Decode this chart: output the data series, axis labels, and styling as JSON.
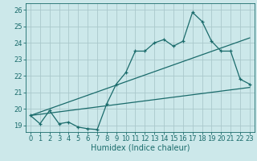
{
  "xlabel": "Humidex (Indice chaleur)",
  "ylabel": "",
  "bg_color": "#cce8ea",
  "grid_color": "#aac8cc",
  "line_color": "#1a6b6b",
  "xlim": [
    -0.5,
    23.5
  ],
  "ylim": [
    18.6,
    26.4
  ],
  "xticks": [
    0,
    1,
    2,
    3,
    4,
    5,
    6,
    7,
    8,
    9,
    10,
    11,
    12,
    13,
    14,
    15,
    16,
    17,
    18,
    19,
    20,
    21,
    22,
    23
  ],
  "yticks": [
    19,
    20,
    21,
    22,
    23,
    24,
    25,
    26
  ],
  "line1_x": [
    0,
    1,
    2,
    3,
    4,
    5,
    6,
    7,
    8,
    9,
    10,
    11,
    12,
    13,
    14,
    15,
    16,
    17,
    18,
    19,
    20,
    21,
    22,
    23
  ],
  "line1_y": [
    19.6,
    19.1,
    19.9,
    19.1,
    19.2,
    18.9,
    18.8,
    18.75,
    20.3,
    21.5,
    22.2,
    23.5,
    23.5,
    24.0,
    24.2,
    23.8,
    24.1,
    25.85,
    25.3,
    24.1,
    23.5,
    23.5,
    21.8,
    21.5
  ],
  "line2_x": [
    0,
    23
  ],
  "line2_y": [
    19.6,
    24.3
  ],
  "line3_x": [
    0,
    23
  ],
  "line3_y": [
    19.6,
    21.3
  ],
  "font_size_label": 7,
  "font_size_tick": 6,
  "lw": 0.9
}
